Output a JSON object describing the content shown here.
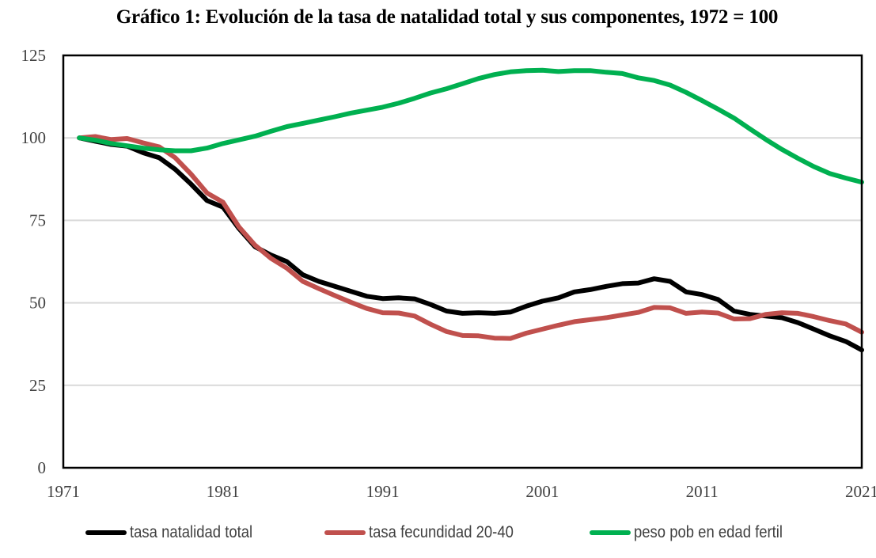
{
  "chart_data": {
    "type": "line",
    "title": "Gráfico 1: Evolución de la tasa de natalidad total y sus componentes, 1972 = 100",
    "xlabel": "",
    "ylabel": "",
    "xlim": [
      1971,
      2021
    ],
    "ylim": [
      0,
      125
    ],
    "x_ticks": [
      "1971",
      "1981",
      "1991",
      "2001",
      "2011",
      "2021"
    ],
    "y_ticks": [
      "0",
      "25",
      "50",
      "75",
      "100",
      "125"
    ],
    "grid": "horizontal",
    "legend_position": "bottom",
    "x": [
      1972,
      1973,
      1974,
      1975,
      1976,
      1977,
      1978,
      1979,
      1980,
      1981,
      1982,
      1983,
      1984,
      1985,
      1986,
      1987,
      1988,
      1989,
      1990,
      1991,
      1992,
      1993,
      1994,
      1995,
      1996,
      1997,
      1998,
      1999,
      2000,
      2001,
      2002,
      2003,
      2004,
      2005,
      2006,
      2007,
      2008,
      2009,
      2010,
      2011,
      2012,
      2013,
      2014,
      2015,
      2016,
      2017,
      2018,
      2019,
      2020,
      2021
    ],
    "series": [
      {
        "name": "tasa natalidad total",
        "color": "#000000",
        "values": [
          100,
          99,
          98,
          97.5,
          95.5,
          94,
          90.5,
          86,
          81,
          79,
          72.5,
          67,
          64.5,
          62.5,
          58.5,
          56.5,
          55,
          53.5,
          52,
          51.3,
          51.5,
          51.2,
          49.5,
          47.5,
          46.8,
          47,
          46.8,
          47.2,
          49,
          50.5,
          51.5,
          53.3,
          54,
          55,
          55.8,
          56,
          57.3,
          56.5,
          53.3,
          52.5,
          51,
          47.5,
          46.5,
          46,
          45.5,
          44,
          42,
          40,
          38.3,
          35.7
        ]
      },
      {
        "name": "tasa fecundidad 20-40",
        "color": "#c0504d",
        "values": [
          100,
          100.4,
          99.5,
          99.8,
          98.5,
          97.3,
          94,
          89,
          83.3,
          80.5,
          73,
          67.5,
          63.5,
          60.5,
          56.5,
          54.3,
          52.2,
          50.2,
          48.3,
          47,
          46.9,
          46,
          43.5,
          41.3,
          40.1,
          40,
          39.3,
          39.2,
          40.8,
          42,
          43.2,
          44.3,
          44.9,
          45.5,
          46.3,
          47.1,
          48.6,
          48.5,
          46.8,
          47.2,
          46.9,
          45.1,
          45.2,
          46.5,
          47,
          46.8,
          45.8,
          44.6,
          43.6,
          41.1
        ]
      },
      {
        "name": "peso pob en edad fertil",
        "color": "#00b050",
        "values": [
          100,
          99.3,
          98.3,
          97.6,
          96.9,
          96.4,
          96.1,
          96.1,
          96.9,
          98.3,
          99.4,
          100.5,
          102,
          103.4,
          104.4,
          105.4,
          106.4,
          107.5,
          108.4,
          109.3,
          110.5,
          112,
          113.6,
          114.9,
          116.4,
          118,
          119.2,
          120,
          120.4,
          120.5,
          120.1,
          120.4,
          120.4,
          119.9,
          119.5,
          118.2,
          117.4,
          116,
          113.8,
          111.3,
          108.7,
          106,
          102.7,
          99.5,
          96.5,
          93.8,
          91.3,
          89.2,
          87.8,
          86.6
        ]
      }
    ]
  }
}
